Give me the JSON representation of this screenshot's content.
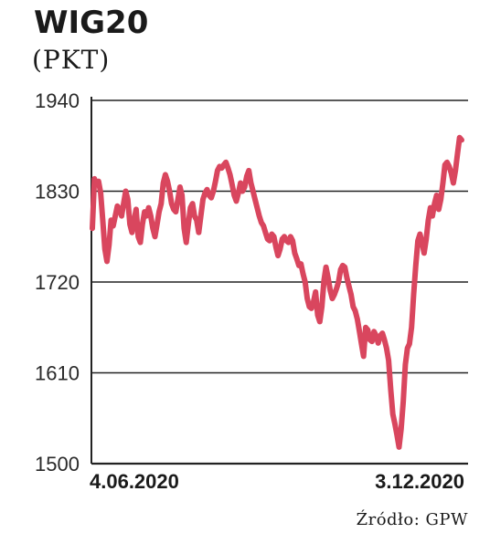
{
  "chart_data": {
    "type": "line",
    "title": "WIG20",
    "subtitle": "(PKT)",
    "source": "Źródło: GPW",
    "x_tick_labels": [
      "4.06.2020",
      "3.12.2020"
    ],
    "y_ticks": [
      1500,
      1610,
      1720,
      1830,
      1940
    ],
    "ylim": [
      1500,
      1940
    ],
    "grid": true,
    "colors": {
      "line": "#d9465e",
      "grid": "#222222",
      "axis": "#222222"
    },
    "series": [
      {
        "values": [
          1785,
          1845,
          1838,
          1842,
          1828,
          1795,
          1760,
          1745,
          1765,
          1795,
          1788,
          1800,
          1812,
          1808,
          1800,
          1815,
          1830,
          1820,
          1790,
          1780,
          1795,
          1808,
          1775,
          1768,
          1790,
          1805,
          1800,
          1810,
          1800,
          1785,
          1775,
          1790,
          1805,
          1815,
          1840,
          1850,
          1842,
          1830,
          1815,
          1808,
          1805,
          1820,
          1835,
          1825,
          1785,
          1768,
          1790,
          1810,
          1815,
          1800,
          1795,
          1780,
          1800,
          1820,
          1828,
          1832,
          1825,
          1822,
          1830,
          1842,
          1855,
          1860,
          1858,
          1862,
          1865,
          1858,
          1850,
          1838,
          1825,
          1818,
          1828,
          1840,
          1830,
          1835,
          1848,
          1855,
          1840,
          1830,
          1820,
          1810,
          1800,
          1792,
          1788,
          1780,
          1772,
          1770,
          1778,
          1775,
          1762,
          1752,
          1760,
          1772,
          1775,
          1770,
          1768,
          1775,
          1770,
          1755,
          1748,
          1740,
          1742,
          1730,
          1720,
          1700,
          1690,
          1688,
          1696,
          1708,
          1680,
          1672,
          1690,
          1722,
          1738,
          1725,
          1710,
          1700,
          1705,
          1712,
          1720,
          1735,
          1740,
          1738,
          1725,
          1715,
          1705,
          1690,
          1685,
          1675,
          1660,
          1645,
          1630,
          1665,
          1662,
          1650,
          1648,
          1660,
          1655,
          1646,
          1655,
          1658,
          1650,
          1640,
          1625,
          1590,
          1560,
          1548,
          1535,
          1520,
          1542,
          1575,
          1620,
          1640,
          1645,
          1665,
          1705,
          1740,
          1770,
          1778,
          1768,
          1755,
          1772,
          1795,
          1810,
          1800,
          1815,
          1825,
          1808,
          1820,
          1840,
          1862,
          1865,
          1860,
          1852,
          1840,
          1855,
          1875,
          1895,
          1892
        ]
      }
    ]
  }
}
